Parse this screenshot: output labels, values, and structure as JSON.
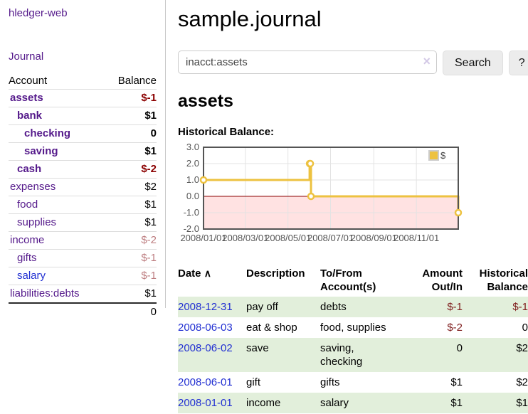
{
  "app": {
    "title": "hledger-web"
  },
  "sidebar": {
    "journal_link": "Journal",
    "columns": {
      "account": "Account",
      "balance": "Balance"
    },
    "accounts": [
      {
        "name": "assets",
        "value": "$-1",
        "indent": 1,
        "bold": true,
        "name_style": "purple",
        "value_style": "neg-strong"
      },
      {
        "name": "bank",
        "value": "$1",
        "indent": 2,
        "bold": true,
        "name_style": "purple",
        "value_style": "plain"
      },
      {
        "name": "checking",
        "value": "0",
        "indent": 3,
        "bold": true,
        "name_style": "purple",
        "value_style": "plain"
      },
      {
        "name": "saving",
        "value": "$1",
        "indent": 3,
        "bold": true,
        "name_style": "purple",
        "value_style": "plain"
      },
      {
        "name": "cash",
        "value": "$-2",
        "indent": 2,
        "bold": true,
        "name_style": "purple",
        "value_style": "neg-strong"
      },
      {
        "name": "expenses",
        "value": "$2",
        "indent": 1,
        "bold": false,
        "name_style": "purple",
        "value_style": "plain"
      },
      {
        "name": "food",
        "value": "$1",
        "indent": 2,
        "bold": false,
        "name_style": "purple",
        "value_style": "plain"
      },
      {
        "name": "supplies",
        "value": "$1",
        "indent": 2,
        "bold": false,
        "name_style": "purple",
        "value_style": "plain"
      },
      {
        "name": "income",
        "value": "$-2",
        "indent": 1,
        "bold": false,
        "name_style": "purple",
        "value_style": "neg-soft"
      },
      {
        "name": "gifts",
        "value": "$-1",
        "indent": 2,
        "bold": false,
        "name_style": "purple",
        "value_style": "neg-soft"
      },
      {
        "name": "salary",
        "value": "$-1",
        "indent": 2,
        "bold": false,
        "name_style": "blue",
        "value_style": "neg-soft"
      },
      {
        "name": "liabilities:debts",
        "value": "$1",
        "indent": 1,
        "bold": false,
        "name_style": "purple",
        "value_style": "plain"
      }
    ],
    "total": "0"
  },
  "main": {
    "title": "sample.journal",
    "search": {
      "value": "inacct:assets",
      "clear_icon": "×",
      "button_label": "Search",
      "help_label": "?"
    },
    "account_heading": "assets",
    "chart_heading": "Historical Balance:"
  },
  "chart_data": {
    "type": "line",
    "step": true,
    "title": "Historical Balance",
    "series": [
      {
        "name": "$",
        "points": [
          [
            "2008-01-01",
            1
          ],
          [
            "2008-06-01",
            2
          ],
          [
            "2008-06-02",
            2
          ],
          [
            "2008-06-03",
            0
          ],
          [
            "2008-12-31",
            -1
          ]
        ]
      }
    ],
    "xrange": [
      "2008-01-01",
      "2008-12-31"
    ],
    "ylim": [
      -2,
      3
    ],
    "yticks": [
      "3.0",
      "2.0",
      "1.0",
      "0.0",
      "-1.0",
      "-2.0"
    ],
    "ytick_values": [
      3,
      2,
      1,
      0,
      -1,
      -2
    ],
    "xticks": [
      "2008/01/01",
      "2008/03/01",
      "2008/05/01",
      "2008/07/01",
      "2008/09/01",
      "2008/11/01"
    ],
    "grid": true,
    "legend": {
      "label": "$",
      "position": "top-right"
    },
    "colors": {
      "line": "#edc240",
      "negative_region": "#ffe2e2",
      "zero_line": "#8b0000",
      "grid": "#e3e3e3",
      "border": "#545454",
      "tick_text": "#545454"
    }
  },
  "register": {
    "headers": [
      "Date",
      "Description",
      "To/From Account(s)",
      "Amount Out/In",
      "Historical Balance"
    ],
    "sort_icon": "∧",
    "rows": [
      {
        "date": "2008-12-31",
        "description": "pay off",
        "accounts": "debts",
        "amount": "$-1",
        "amount_negative": true,
        "balance": "$-1",
        "balance_negative": true,
        "shaded": true
      },
      {
        "date": "2008-06-03",
        "description": "eat & shop",
        "accounts": "food, supplies",
        "amount": "$-2",
        "amount_negative": true,
        "balance": "0",
        "balance_negative": false,
        "shaded": false
      },
      {
        "date": "2008-06-02",
        "description": "save",
        "accounts": "saving, checking",
        "amount": "0",
        "amount_negative": false,
        "balance": "$2",
        "balance_negative": false,
        "shaded": true
      },
      {
        "date": "2008-06-01",
        "description": "gift",
        "accounts": "gifts",
        "amount": "$1",
        "amount_negative": false,
        "balance": "$2",
        "balance_negative": false,
        "shaded": false
      },
      {
        "date": "2008-01-01",
        "description": "income",
        "accounts": "salary",
        "amount": "$1",
        "amount_negative": false,
        "balance": "$1",
        "balance_negative": false,
        "shaded": true
      }
    ]
  }
}
